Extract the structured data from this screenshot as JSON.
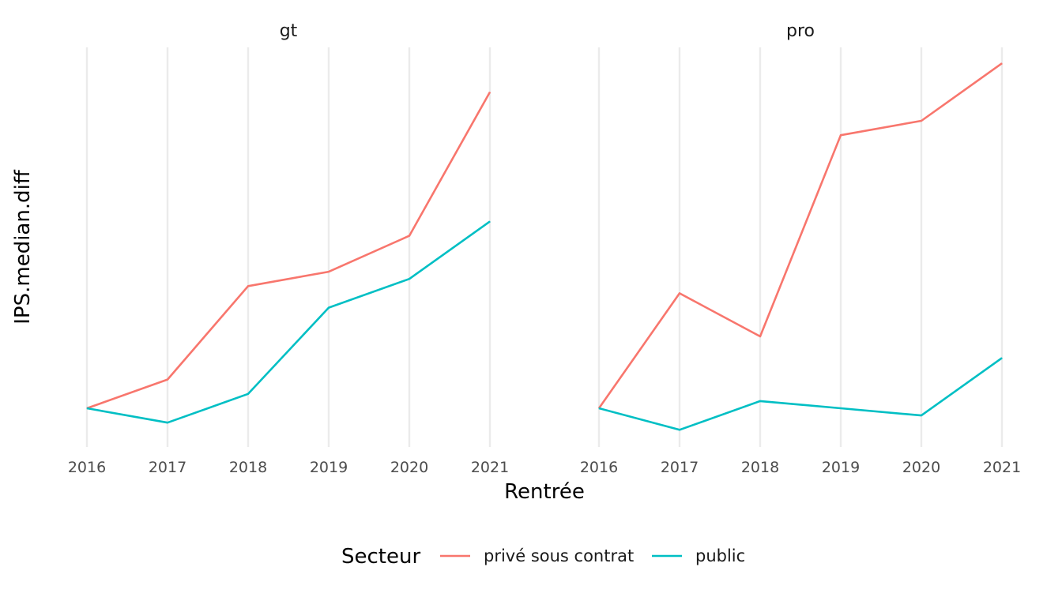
{
  "chart_data": {
    "type": "line",
    "facet_variable": "filiere",
    "xlabel": "Rentrée",
    "ylabel": "IPS.median.diff",
    "y_ticks_shown": false,
    "grid": "vertical major only",
    "legend": {
      "title": "Secteur",
      "position": "bottom"
    },
    "x": [
      2016,
      2017,
      2018,
      2019,
      2020,
      2021
    ],
    "series_colors": {
      "privé sous contrat": "#F8766D",
      "public": "#00BFC4"
    },
    "panels": [
      {
        "label": "gt",
        "series": [
          {
            "name": "privé sous contrat",
            "values": [
              0.0,
              4.0,
              17.0,
              19.0,
              24.0,
              44.0
            ]
          },
          {
            "name": "public",
            "values": [
              0.0,
              -2.0,
              2.0,
              14.0,
              18.0,
              26.0
            ]
          }
        ]
      },
      {
        "label": "pro",
        "series": [
          {
            "name": "privé sous contrat",
            "values": [
              0.0,
              16.0,
              10.0,
              38.0,
              40.0,
              48.0
            ]
          },
          {
            "name": "public",
            "values": [
              0.0,
              -3.0,
              1.0,
              0.0,
              -1.0,
              7.0
            ]
          }
        ]
      }
    ]
  }
}
